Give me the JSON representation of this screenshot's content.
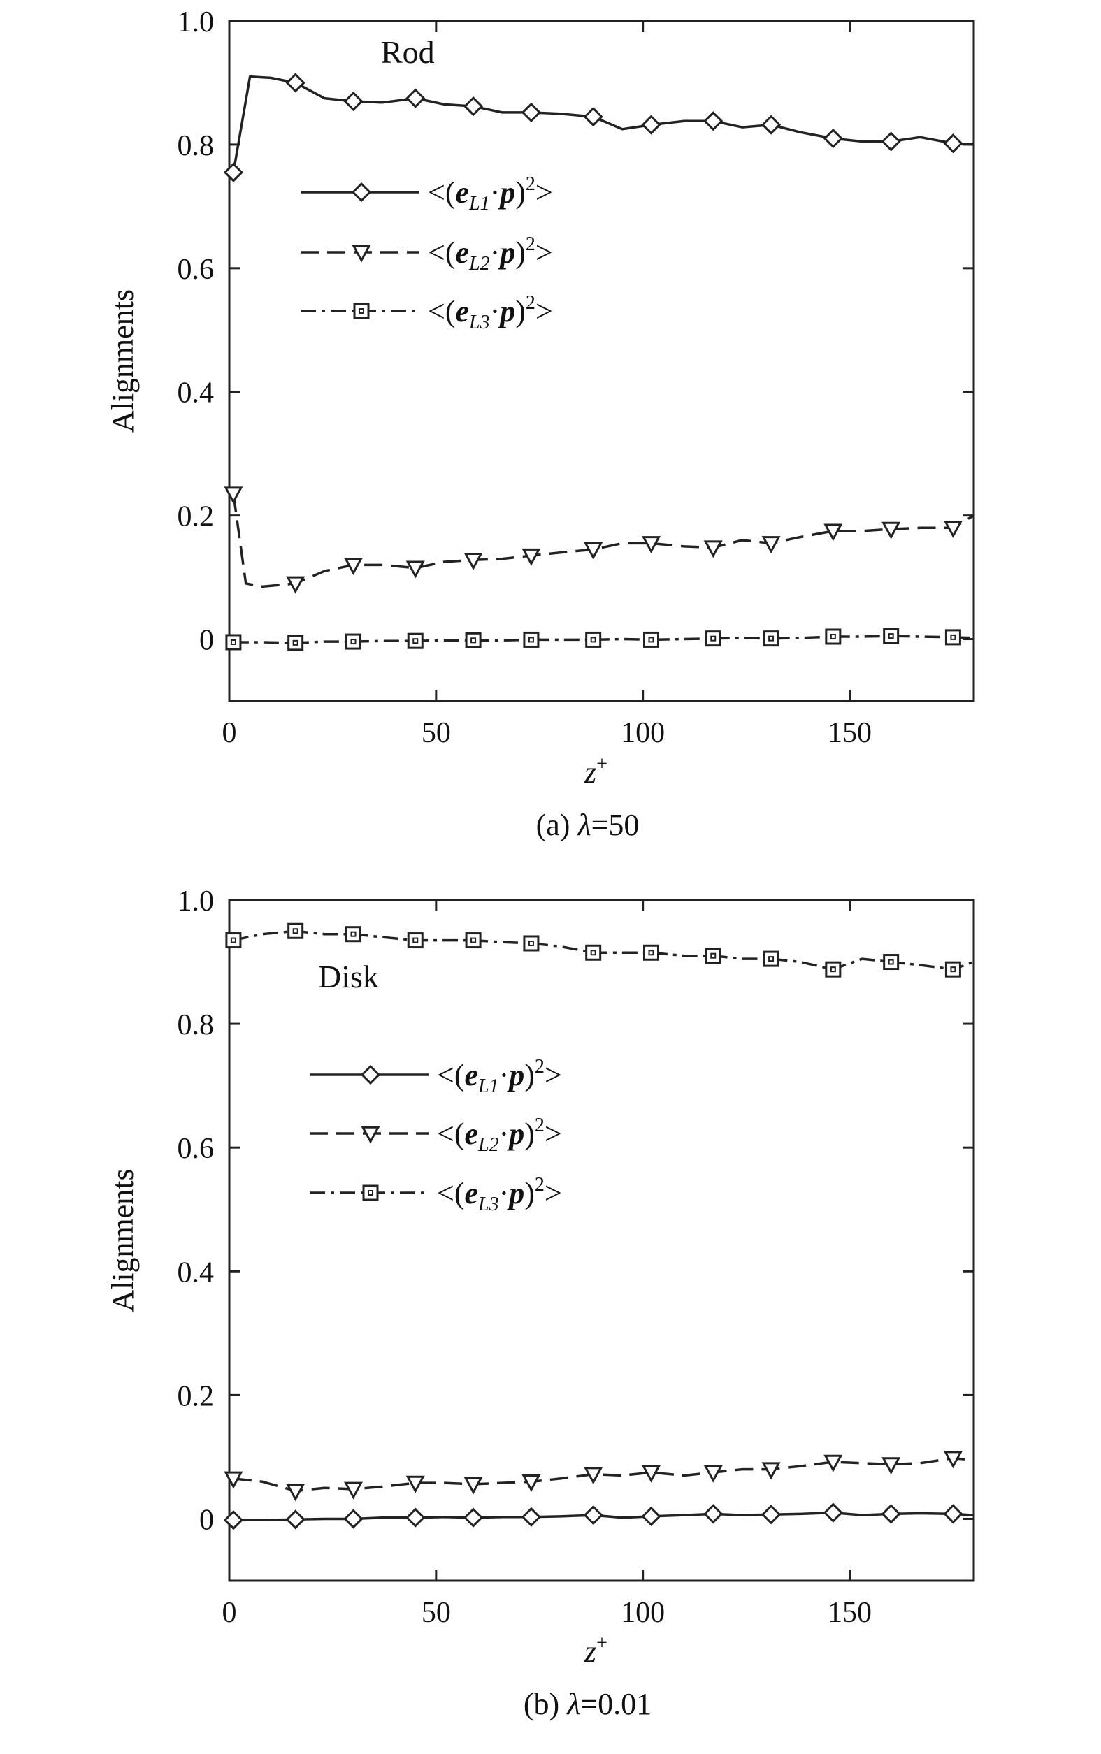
{
  "chart_data": [
    {
      "type": "line",
      "panel_label": "Rod",
      "caption_prefix": "(a) ",
      "caption_symbol": "λ",
      "caption_value": "=50",
      "xlabel": "z",
      "xlabel_sup": "+",
      "ylabel": "Alignments",
      "xlim": [
        0,
        180
      ],
      "ylim": [
        -0.1,
        1.0
      ],
      "xticks": [
        0,
        50,
        100,
        150
      ],
      "yticks": [
        0,
        0.2,
        0.4,
        0.6,
        0.8,
        1.0
      ],
      "ytick_labels": [
        "0",
        "0.2",
        "0.4",
        "0.6",
        "0.8",
        "1.0"
      ],
      "xtick_labels": [
        "0",
        "50",
        "100",
        "150"
      ],
      "legend_position": "upper-left",
      "series": [
        {
          "key": "L1",
          "name": "<(eL1·p)²>",
          "sub": "L1",
          "dash": "solid",
          "marker": "diamond",
          "x": [
            1,
            5,
            10,
            16,
            23,
            30,
            37,
            45,
            52,
            59,
            66,
            73,
            80,
            88,
            95,
            102,
            110,
            117,
            124,
            131,
            138,
            146,
            153,
            160,
            167,
            175,
            180
          ],
          "y": [
            0.755,
            0.91,
            0.908,
            0.9,
            0.875,
            0.87,
            0.868,
            0.875,
            0.865,
            0.862,
            0.852,
            0.852,
            0.85,
            0.845,
            0.825,
            0.832,
            0.838,
            0.838,
            0.828,
            0.832,
            0.82,
            0.81,
            0.805,
            0.805,
            0.812,
            0.802,
            0.8
          ]
        },
        {
          "key": "L2",
          "name": "<(eL2·p)²>",
          "sub": "L2",
          "dash": "dashed",
          "marker": "triangle-down",
          "x": [
            1,
            4,
            8,
            16,
            23,
            30,
            37,
            45,
            52,
            59,
            66,
            73,
            80,
            88,
            95,
            102,
            110,
            117,
            124,
            131,
            138,
            146,
            153,
            160,
            167,
            175,
            180
          ],
          "y": [
            0.235,
            0.09,
            0.085,
            0.09,
            0.11,
            0.12,
            0.12,
            0.115,
            0.125,
            0.128,
            0.13,
            0.135,
            0.14,
            0.145,
            0.155,
            0.155,
            0.15,
            0.148,
            0.16,
            0.155,
            0.165,
            0.175,
            0.175,
            0.178,
            0.18,
            0.18,
            0.2
          ]
        },
        {
          "key": "L3",
          "name": "<(eL3·p)²>",
          "sub": "L3",
          "dash": "dashdot",
          "marker": "square",
          "x": [
            1,
            8,
            16,
            23,
            30,
            37,
            45,
            52,
            59,
            66,
            73,
            80,
            88,
            95,
            102,
            110,
            117,
            124,
            131,
            138,
            146,
            153,
            160,
            167,
            175,
            180
          ],
          "y": [
            -0.005,
            -0.005,
            -0.006,
            -0.004,
            -0.004,
            -0.003,
            -0.003,
            -0.002,
            -0.002,
            -0.002,
            -0.001,
            -0.001,
            -0.001,
            0.0,
            -0.001,
            0.0,
            0.001,
            0.002,
            0.001,
            0.002,
            0.004,
            0.004,
            0.005,
            0.004,
            0.003,
            0.002
          ]
        }
      ]
    },
    {
      "type": "line",
      "panel_label": "Disk",
      "caption_prefix": "(b) ",
      "caption_symbol": "λ",
      "caption_value": "=0.01",
      "xlabel": "z",
      "xlabel_sup": "+",
      "ylabel": "Alignments",
      "xlim": [
        0,
        180
      ],
      "ylim": [
        -0.1,
        1.0
      ],
      "xticks": [
        0,
        50,
        100,
        150
      ],
      "yticks": [
        0,
        0.2,
        0.4,
        0.6,
        0.8,
        1.0
      ],
      "ytick_labels": [
        "0",
        "0.2",
        "0.4",
        "0.6",
        "0.8",
        "1.0"
      ],
      "xtick_labels": [
        "0",
        "50",
        "100",
        "150"
      ],
      "legend_position": "upper-left",
      "series": [
        {
          "key": "L1",
          "name": "<(eL1·p)²>",
          "sub": "L1",
          "dash": "solid",
          "marker": "diamond",
          "x": [
            1,
            8,
            16,
            23,
            30,
            37,
            45,
            52,
            59,
            66,
            73,
            80,
            88,
            95,
            102,
            110,
            117,
            124,
            131,
            138,
            146,
            153,
            160,
            167,
            175,
            180
          ],
          "y": [
            -0.002,
            -0.002,
            -0.001,
            0.0,
            0.0,
            0.002,
            0.002,
            0.003,
            0.002,
            0.003,
            0.003,
            0.004,
            0.006,
            0.002,
            0.004,
            0.006,
            0.008,
            0.006,
            0.007,
            0.008,
            0.01,
            0.006,
            0.008,
            0.009,
            0.008,
            0.006
          ]
        },
        {
          "key": "L2",
          "name": "<(eL2·p)²>",
          "sub": "L2",
          "dash": "dashed",
          "marker": "triangle-down",
          "x": [
            1,
            8,
            16,
            23,
            30,
            37,
            45,
            52,
            59,
            66,
            73,
            80,
            88,
            95,
            102,
            110,
            117,
            124,
            131,
            138,
            146,
            153,
            160,
            167,
            175,
            180
          ],
          "y": [
            0.065,
            0.06,
            0.045,
            0.05,
            0.048,
            0.052,
            0.058,
            0.058,
            0.056,
            0.058,
            0.06,
            0.065,
            0.072,
            0.07,
            0.075,
            0.07,
            0.075,
            0.08,
            0.08,
            0.085,
            0.092,
            0.09,
            0.088,
            0.09,
            0.098,
            0.095
          ]
        },
        {
          "key": "L3",
          "name": "<(eL3·p)²>",
          "sub": "L3",
          "dash": "dashdot",
          "marker": "square",
          "x": [
            1,
            8,
            16,
            23,
            30,
            37,
            45,
            52,
            59,
            66,
            73,
            80,
            88,
            95,
            102,
            110,
            117,
            124,
            131,
            138,
            146,
            153,
            160,
            167,
            175,
            180
          ],
          "y": [
            0.935,
            0.945,
            0.95,
            0.945,
            0.945,
            0.94,
            0.935,
            0.935,
            0.935,
            0.932,
            0.93,
            0.925,
            0.915,
            0.915,
            0.915,
            0.91,
            0.91,
            0.905,
            0.905,
            0.9,
            0.888,
            0.905,
            0.9,
            0.895,
            0.888,
            0.9
          ]
        }
      ]
    }
  ]
}
